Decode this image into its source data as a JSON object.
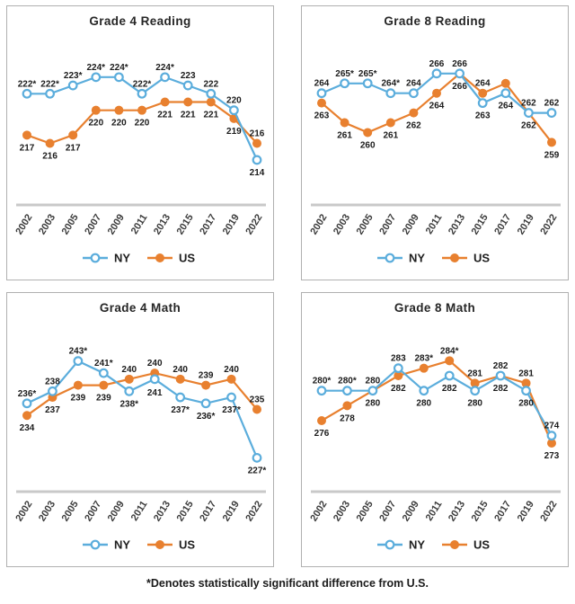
{
  "footnote": "*Denotes statistically significant difference from U.S.",
  "legend": {
    "ny": "NY",
    "us": "US"
  },
  "colors": {
    "ny": "#5BADDC",
    "us": "#E8802F",
    "axis": "#c9c9c9",
    "tick_text": "#3b3b3b",
    "value_text": "#1b1b1b"
  },
  "x_ticks": [
    "2002",
    "2003",
    "2005",
    "2007",
    "2009",
    "2011",
    "2013",
    "2015",
    "2017",
    "2019",
    "2022"
  ],
  "chart_data": [
    {
      "type": "line",
      "title": "Grade 4 Reading",
      "x": [
        "2002",
        "2003",
        "2005",
        "2007",
        "2009",
        "2011",
        "2013",
        "2015",
        "2017",
        "2019",
        "2022"
      ],
      "ylim": [
        209,
        228
      ],
      "legend_position": "bottom",
      "series": [
        {
          "name": "US",
          "values": [
            217,
            216,
            217,
            220,
            220,
            220,
            221,
            221,
            221,
            219,
            216
          ],
          "labels": [
            "217",
            "216",
            "217",
            "220",
            "220",
            "220",
            "221",
            "221",
            "221",
            "219",
            "216"
          ],
          "label_pos": [
            "b",
            "b",
            "b",
            "b",
            "b",
            "b",
            "b",
            "b",
            "b",
            "b",
            "a"
          ]
        },
        {
          "name": "NY",
          "values": [
            222,
            222,
            223,
            224,
            224,
            222,
            224,
            223,
            222,
            220,
            214
          ],
          "labels": [
            "222*",
            "222*",
            "223*",
            "224*",
            "224*",
            "222*",
            "224*",
            "223",
            "222",
            "220",
            "214"
          ],
          "label_pos": [
            "a",
            "a",
            "a",
            "a",
            "a",
            "a",
            "a",
            "a",
            "a",
            "a",
            "b"
          ]
        }
      ]
    },
    {
      "type": "line",
      "title": "Grade 8 Reading",
      "x": [
        "2002",
        "2003",
        "2005",
        "2007",
        "2009",
        "2011",
        "2013",
        "2015",
        "2017",
        "2019",
        "2022"
      ],
      "ylim": [
        253,
        269
      ],
      "legend_position": "bottom",
      "series": [
        {
          "name": "US",
          "values": [
            263,
            261,
            260,
            261,
            262,
            264,
            266,
            264,
            265,
            262,
            259
          ],
          "labels": [
            "263",
            "261",
            "260",
            "261",
            "262",
            "264",
            "266",
            "264",
            "",
            "262",
            "259"
          ],
          "label_pos": [
            "b",
            "b",
            "b",
            "b",
            "b",
            "b",
            "b",
            "a",
            "b",
            "b",
            "b"
          ]
        },
        {
          "name": "NY",
          "values": [
            264,
            265,
            265,
            264,
            264,
            266,
            266,
            263,
            264,
            262,
            262
          ],
          "labels": [
            "264",
            "265*",
            "265*",
            "264*",
            "264",
            "266",
            "266",
            "263",
            "264",
            "262",
            "262"
          ],
          "label_pos": [
            "a",
            "a",
            "a",
            "a",
            "a",
            "a",
            "a",
            "b",
            "b",
            "a",
            "a"
          ]
        }
      ]
    },
    {
      "type": "line",
      "title": "Grade 4 Math",
      "x": [
        "2003",
        "2005",
        "2007",
        "2009",
        "2011",
        "2013",
        "2015",
        "2017",
        "2019",
        "2022"
      ],
      "ylim": [
        222,
        248
      ],
      "legend_position": "bottom",
      "series": [
        {
          "name": "US",
          "values": [
            234,
            237,
            239,
            239,
            240,
            241,
            240,
            239,
            240,
            235
          ],
          "labels": [
            "234",
            "237",
            "239",
            "239",
            "240",
            "241",
            "240",
            "239",
            "240",
            "235"
          ],
          "label_pos": [
            "b",
            "b",
            "b",
            "b",
            "a",
            "B",
            "a",
            "a",
            "a",
            "a"
          ]
        },
        {
          "name": "NY",
          "values": [
            236,
            238,
            243,
            241,
            238,
            240,
            237,
            236,
            237,
            227
          ],
          "labels": [
            "236*",
            "238",
            "243*",
            "241*",
            "238*",
            "240",
            "237*",
            "236*",
            "237*",
            "227*"
          ],
          "label_pos": [
            "a",
            "a",
            "a",
            "a",
            "b",
            "A",
            "b",
            "b",
            "b",
            "b"
          ]
        }
      ]
    },
    {
      "type": "line",
      "title": "Grade 8 Math",
      "x": [
        "2003",
        "2005",
        "2007",
        "2009",
        "2011",
        "2013",
        "2015",
        "2017",
        "2019",
        "2022"
      ],
      "ylim": [
        267,
        288
      ],
      "legend_position": "bottom",
      "series": [
        {
          "name": "US",
          "values": [
            276,
            278,
            280,
            282,
            283,
            284,
            281,
            282,
            281,
            273
          ],
          "labels": [
            "276",
            "278",
            "280",
            "282",
            "283*",
            "284*",
            "281",
            "282",
            "281",
            "273"
          ],
          "label_pos": [
            "b",
            "b",
            "b",
            "b",
            "a",
            "a",
            "a",
            "b",
            "a",
            "b"
          ]
        },
        {
          "name": "NY",
          "values": [
            280,
            280,
            280,
            283,
            280,
            282,
            280,
            282,
            280,
            274
          ],
          "labels": [
            "280*",
            "280*",
            "280",
            "283",
            "280",
            "282",
            "280",
            "282",
            "280",
            "274"
          ],
          "label_pos": [
            "a",
            "a",
            "a",
            "a",
            "b",
            "b",
            "b",
            "a",
            "b",
            "a"
          ]
        }
      ]
    }
  ]
}
